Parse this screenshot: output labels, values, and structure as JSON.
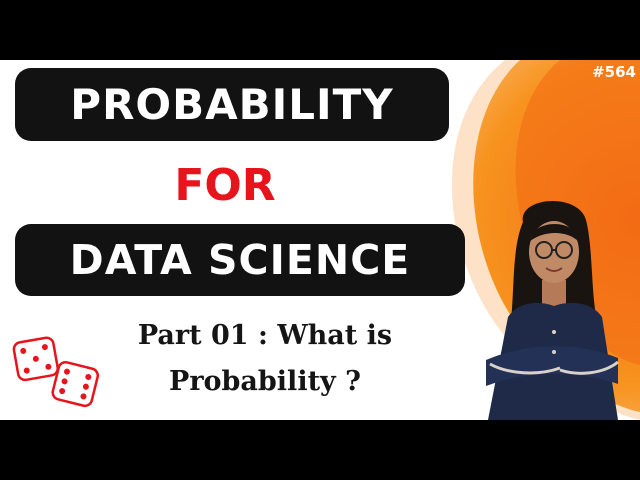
{
  "thumbnail": {
    "title_line1": "PROBABILITY",
    "title_line2": "FOR",
    "title_line3": "DATA SCIENCE",
    "subtitle_line1": "Part 01 : What is",
    "subtitle_line2": "Probability ?",
    "episode_tag": "#564"
  },
  "colors": {
    "accent_red": "#e8141b",
    "pill_black": "#121212",
    "orange": "#f5821f",
    "background": "#ffffff"
  },
  "icons": [
    "dice-icon",
    "presenter-photo"
  ]
}
